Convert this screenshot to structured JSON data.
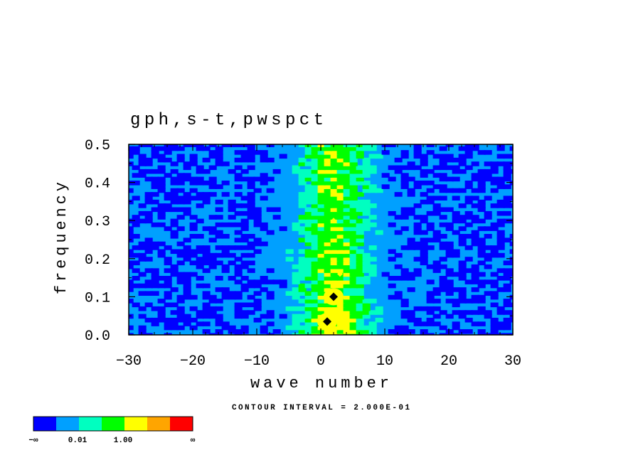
{
  "chart_data": {
    "type": "heatmap",
    "title": "gph,s-t,pwspct",
    "xlabel": "wave number",
    "ylabel": "frequency",
    "xlim": [
      -30,
      30
    ],
    "ylim": [
      0,
      0.5
    ],
    "x_ticks": [
      -30,
      -20,
      -10,
      0,
      10,
      20,
      30
    ],
    "x_tick_labels": [
      "−30",
      "−20",
      "−10",
      "0",
      "10",
      "20",
      "30"
    ],
    "y_ticks": [
      0,
      0.1,
      0.2,
      0.3,
      0.4,
      0.5
    ],
    "y_tick_labels": [
      "0.0",
      "0.1",
      "0.2",
      "0.3",
      "0.4",
      "0.5"
    ],
    "contour_interval_text": "CONTOUR INTERVAL = 2.000E-01",
    "colorbar": {
      "colors": [
        "#0000ff",
        "#00a0ff",
        "#00ffc0",
        "#00ff00",
        "#ffff00",
        "#ffa500",
        "#ff0000"
      ],
      "labels": [
        "−∞",
        "0.01",
        "1.00",
        "∞"
      ]
    },
    "features": {
      "ridge_center_wavenumber": 2,
      "background_level": "0.01 band (light blue)",
      "peaks": [
        {
          "x": 1,
          "y": 0.035,
          "level": "max (black contour)"
        },
        {
          "x": 2,
          "y": 0.1,
          "level": "max (black contour)"
        },
        {
          "x": 2,
          "y": 0.3,
          "level": "yellow"
        },
        {
          "x": 3,
          "y": 0.16,
          "level": "yellow"
        }
      ]
    }
  }
}
